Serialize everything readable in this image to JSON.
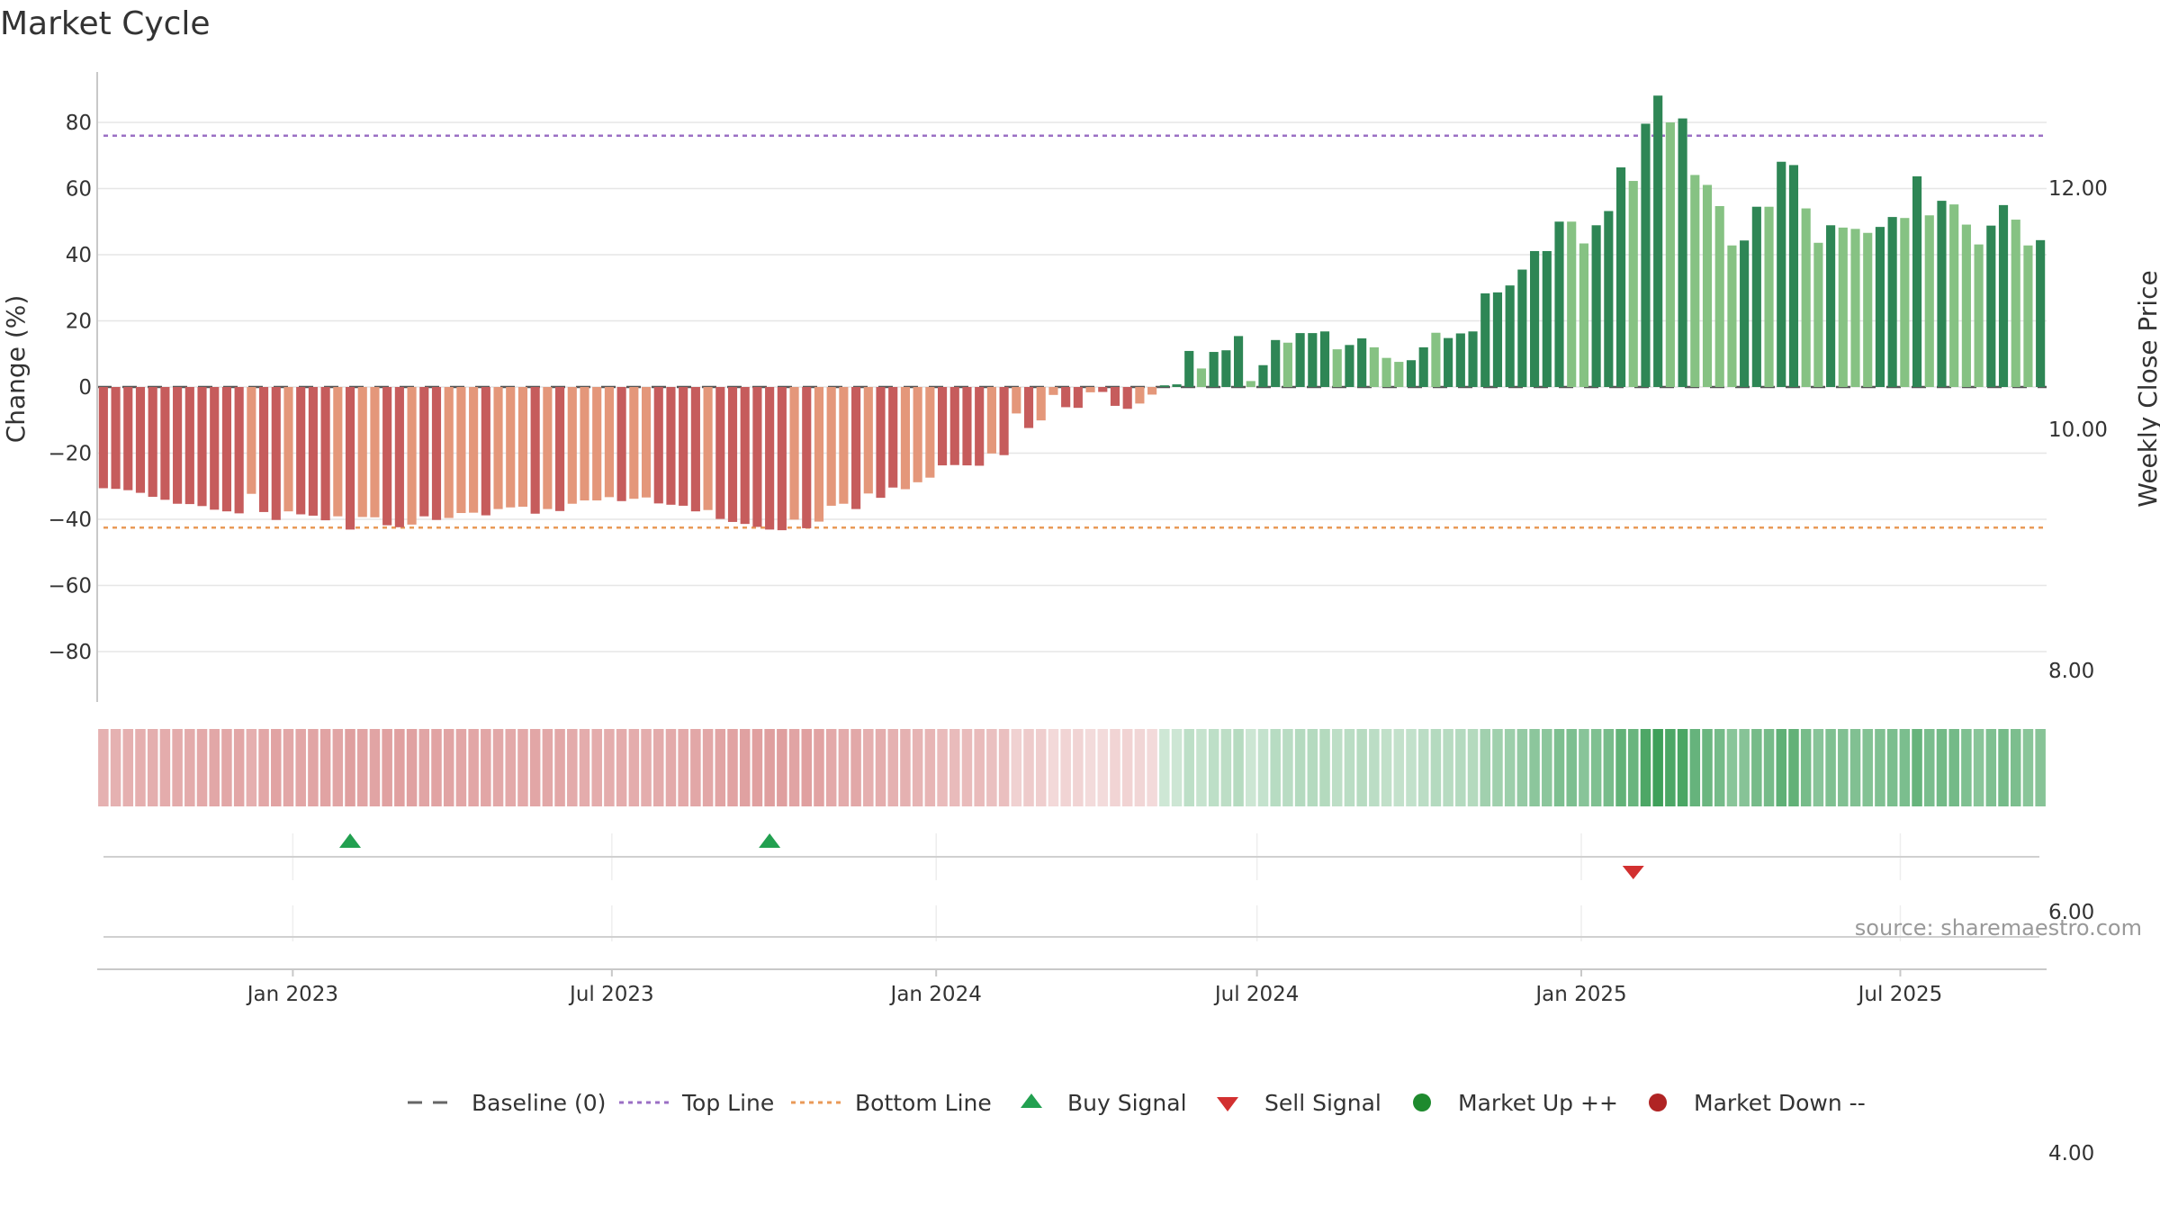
{
  "chart_data": {
    "type": "bar",
    "title": "Market Cycle",
    "ylabel": "Change (%)",
    "y2label": "Weekly Close Price",
    "source": "source: sharemaestro.com",
    "ylim": [
      -97,
      97
    ],
    "y_ticks": [
      80,
      60,
      40,
      20,
      0,
      -20,
      -40,
      -60,
      -80
    ],
    "y_tick_labels": [
      "80",
      "60",
      "40",
      "20",
      "0",
      "−20",
      "−40",
      "−60",
      "−80"
    ],
    "y2_ticks": [
      12,
      10,
      8,
      6,
      4
    ],
    "y2_tick_labels": [
      "12.00",
      "10.00",
      "8.00",
      "6.00",
      "4.00"
    ],
    "x_ticks": [
      "Jan 2023",
      "Jul 2023",
      "Jan 2024",
      "Jul 2024",
      "Jan 2025",
      "Jul 2025"
    ],
    "x_tick_dates": [
      "2023-01-01",
      "2023-07-01",
      "2024-01-01",
      "2024-07-01",
      "2025-01-01",
      "2025-07-01"
    ],
    "x_start": "2022-09-12",
    "reference_lines": {
      "baseline": 0,
      "top_line": 76,
      "bottom_line": -42.5
    },
    "colors": {
      "dark_red": "#c65c5c",
      "light_red": "#e4977a",
      "dark_green": "#2e8655",
      "light_green": "#86c283",
      "top_line": "#9b6fc4",
      "bottom_line": "#e99a58",
      "buy": "#22a050",
      "sell": "#d23030",
      "market_up": "#1e8a2e",
      "market_down": "#b02424"
    },
    "values": [
      -30.6,
      -30.8,
      -31.2,
      -32,
      -33.2,
      -34.1,
      -35.3,
      -35.4,
      -36,
      -37.1,
      -37.6,
      -38.2,
      -32.3,
      -37.8,
      -40.2,
      -37.6,
      -38.5,
      -38.9,
      -40.3,
      -39.1,
      -43.1,
      -39.3,
      -39.4,
      -41.8,
      -42.4,
      -41.6,
      -39.1,
      -40.2,
      -39.6,
      -38.1,
      -38,
      -38.8,
      -36.9,
      -36.4,
      -36.2,
      -38.3,
      -36.9,
      -37.5,
      -35.3,
      -34.3,
      -34.3,
      -33.3,
      -34.5,
      -33.8,
      -33.4,
      -35.2,
      -35.6,
      -35.9,
      -37.6,
      -37.2,
      -39.9,
      -40.8,
      -41.4,
      -42.3,
      -43.1,
      -43.3,
      -40.1,
      -42.7,
      -40.7,
      -35.9,
      -35.3,
      -36.9,
      -32.2,
      -33.5,
      -30.4,
      -30.9,
      -28.8,
      -27.4,
      -23.7,
      -23.6,
      -23.7,
      -23.8,
      -20.1,
      -20.6,
      -8,
      -12.4,
      -10.1,
      -2.4,
      -6.1,
      -6.3,
      -1.6,
      -1.5,
      -5.7,
      -6.6,
      -5,
      -2.3,
      0.5,
      0.8,
      10.9,
      5.6,
      10.6,
      11.1,
      15.4,
      1.8,
      6.6,
      14.2,
      13.4,
      16.3,
      16.3,
      16.8,
      11.4,
      12.7,
      14.7,
      12,
      8.8,
      7.6,
      8.1,
      12,
      16.4,
      14.8,
      16.2,
      16.8,
      28.3,
      28.6,
      30.7,
      35.5,
      41.1,
      41.1,
      50,
      50,
      43.4,
      48.9,
      53.2,
      66.4,
      62.3,
      79.6,
      88.1,
      80,
      81.2,
      64.1,
      61.1,
      54.7,
      42.8,
      44.3,
      54.5,
      54.5,
      68.1,
      67.1,
      54,
      43.6,
      48.9,
      48.2,
      47.8,
      46.6,
      48.4,
      51.4,
      51.1,
      63.7,
      51.9,
      56.3,
      55.2,
      49.1,
      43.1,
      48.8,
      55,
      50.6,
      42.8,
      44.4
    ],
    "bar_shade": [
      1,
      1,
      1,
      1,
      1,
      1,
      1,
      1,
      1,
      1,
      1,
      1,
      0,
      1,
      1,
      0,
      1,
      1,
      1,
      0,
      1,
      0,
      0,
      1,
      1,
      0,
      1,
      1,
      0,
      0,
      0,
      1,
      0,
      0,
      0,
      1,
      0,
      1,
      0,
      0,
      0,
      0,
      1,
      0,
      0,
      1,
      1,
      1,
      1,
      0,
      1,
      1,
      1,
      1,
      1,
      1,
      0,
      1,
      0,
      0,
      0,
      1,
      0,
      1,
      1,
      0,
      0,
      0,
      1,
      1,
      1,
      1,
      0,
      1,
      0,
      1,
      0,
      0,
      1,
      1,
      0,
      1,
      1,
      1,
      0,
      0,
      1,
      1,
      1,
      0,
      1,
      1,
      1,
      0,
      1,
      1,
      0,
      1,
      1,
      1,
      0,
      1,
      1,
      0,
      0,
      0,
      1,
      1,
      0,
      1,
      1,
      1,
      1,
      1,
      1,
      1,
      1,
      1,
      1,
      0,
      0,
      1,
      1,
      1,
      0,
      1,
      1,
      0,
      1,
      0,
      0,
      0,
      0,
      1,
      1,
      0,
      1,
      1,
      0,
      0,
      1,
      0,
      0,
      0,
      1,
      1,
      0,
      1,
      0,
      1,
      0,
      0,
      0,
      1,
      1,
      0,
      0,
      1
    ],
    "buy_signals": [
      20,
      54
    ],
    "sell_signals": [
      124
    ],
    "legend": [
      {
        "label": "Baseline (0)",
        "symbol": "dash"
      },
      {
        "label": "Top Line",
        "symbol": "dot-purple"
      },
      {
        "label": "Bottom Line",
        "symbol": "dot-orange"
      },
      {
        "label": "Buy Signal",
        "symbol": "triangle-up"
      },
      {
        "label": "Sell Signal",
        "symbol": "triangle-down"
      },
      {
        "label": "Market Up ++",
        "symbol": "circle-green"
      },
      {
        "label": "Market Down --",
        "symbol": "circle-red"
      }
    ]
  }
}
